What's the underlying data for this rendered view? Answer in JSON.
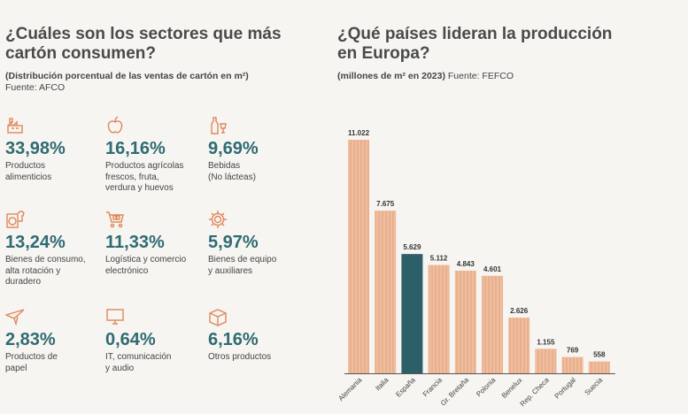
{
  "left": {
    "title_line1": "¿Cuáles son los sectores que más",
    "title_line2": "cartón consumen?",
    "subtitle": "(Distribución porcentual de las ventas de cartón en m²)",
    "source": "Fuente: AFCO",
    "sectors": [
      {
        "pct": "33,98%",
        "line1": "Productos",
        "line2": "alimenticios",
        "line3": "",
        "icon": "food-factory-icon"
      },
      {
        "pct": "16,16%",
        "line1": "Productos agrícolas",
        "line2": "frescos, fruta,",
        "line3": "verdura y huevos",
        "icon": "apple-icon"
      },
      {
        "pct": "9,69%",
        "line1": "Bebidas",
        "line2": "(No lácteas)",
        "line3": "",
        "icon": "bottle-glass-icon"
      },
      {
        "pct": "13,24%",
        "line1": "Bienes de consumo,",
        "line2": "alta rotación y",
        "line3": "duradero",
        "icon": "washer-shirt-icon"
      },
      {
        "pct": "11,33%",
        "line1": "Logística y comercio",
        "line2": "electrónico",
        "line3": "",
        "icon": "cart-icon"
      },
      {
        "pct": "5,97%",
        "line1": "Bienes de equipo",
        "line2": "y auxiliares",
        "line3": "",
        "icon": "gear-icon"
      },
      {
        "pct": "2,83%",
        "line1": "Productos de",
        "line2": "papel",
        "line3": "",
        "icon": "paper-plane-icon"
      },
      {
        "pct": "0,64%",
        "line1": "IT, comunicación",
        "line2": "y audio",
        "line3": "",
        "icon": "monitor-icon"
      },
      {
        "pct": "6,16%",
        "line1": "Otros productos",
        "line2": "",
        "line3": "",
        "icon": "box-icon"
      }
    ]
  },
  "right": {
    "title_line1": "¿Qué países lideran la producción",
    "title_line2": "en Europa?",
    "subtitle_bold": "(millones de m² en 2023)",
    "subtitle_source": " Fuente: FEFCO"
  },
  "colors": {
    "teal": "#2f6b72",
    "bar": "#e9b08e",
    "bar_stripe": "#f2c6aa",
    "highlight": "#2c5f68",
    "icon": "#e0875a"
  },
  "chart_data": {
    "type": "bar",
    "title": "¿Qué países lideran la producción en Europa?",
    "ylabel": "millones de m² en 2023",
    "categories": [
      "Alemania",
      "Italia",
      "España",
      "Francia",
      "Gr. Bretaña",
      "Polonia",
      "Benelux",
      "Rep. Checa",
      "Portugal",
      "Suecia"
    ],
    "values": [
      11022,
      7675,
      5629,
      5112,
      4843,
      4601,
      2626,
      1155,
      769,
      558
    ],
    "labels": [
      "11.022",
      "7.675",
      "5.629",
      "5.112",
      "4.843",
      "4.601",
      "2.626",
      "1.155",
      "769",
      "558"
    ],
    "highlight": "España",
    "ylim": [
      0,
      11022
    ]
  }
}
